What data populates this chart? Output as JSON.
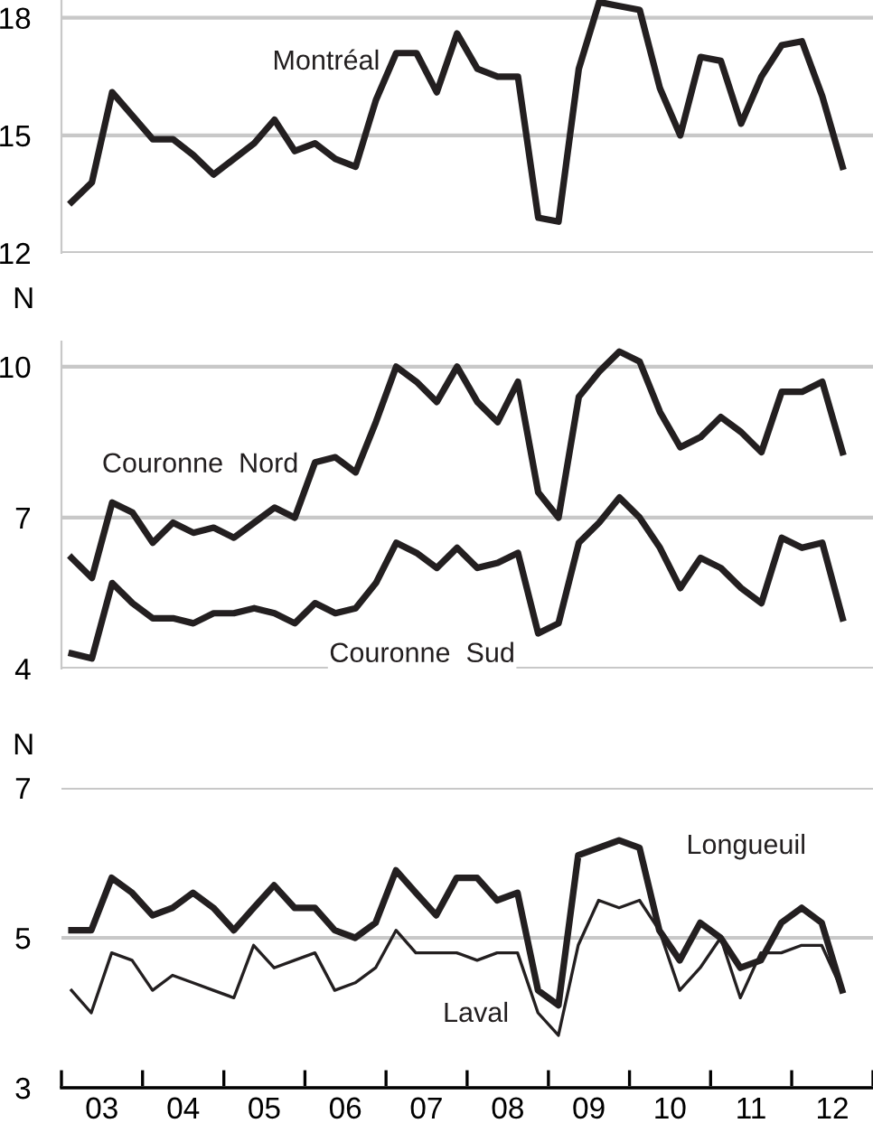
{
  "chart_data": [
    {
      "type": "line",
      "categories": [
        null,
        null,
        null,
        null,
        null,
        null,
        null,
        null,
        null,
        null,
        null,
        null,
        null,
        null,
        null,
        null,
        null,
        null,
        null,
        null,
        null,
        null,
        null,
        null,
        null,
        null,
        null,
        null,
        null,
        null,
        null,
        null,
        null,
        null,
        null,
        null,
        null,
        null,
        null
      ],
      "series": [
        {
          "name": "Montréal",
          "color": "#231f20",
          "values": [
            13.3,
            13.8,
            16.1,
            15.5,
            14.9,
            14.9,
            14.5,
            14.0,
            14.4,
            14.8,
            15.4,
            14.6,
            14.8,
            14.4,
            14.2,
            15.9,
            17.1,
            17.1,
            16.1,
            17.6,
            16.7,
            16.5,
            16.5,
            12.9,
            12.8,
            16.7,
            18.4,
            18.3,
            18.2,
            16.2,
            15.0,
            17.0,
            16.9,
            15.3,
            16.5,
            17.3,
            17.4,
            16.0,
            14.2
          ]
        }
      ],
      "ylim": [
        12,
        18.5
      ],
      "yticks": [
        12,
        15,
        18
      ],
      "grid": "y",
      "tick_labels": "y"
    },
    {
      "type": "line",
      "ylabel": "N",
      "categories": [
        null,
        null,
        null,
        null,
        null,
        null,
        null,
        null,
        null,
        null,
        null,
        null,
        null,
        null,
        null,
        null,
        null,
        null,
        null,
        null,
        null,
        null,
        null,
        null,
        null,
        null,
        null,
        null,
        null,
        null,
        null,
        null,
        null,
        null,
        null,
        null,
        null,
        null,
        null
      ],
      "series": [
        {
          "name": "Couronne  Nord",
          "color": "#231f20",
          "values": [
            6.2,
            5.8,
            7.3,
            7.1,
            6.5,
            6.9,
            6.7,
            6.8,
            6.6,
            6.9,
            7.2,
            7.0,
            8.1,
            8.2,
            7.9,
            8.9,
            10.0,
            9.7,
            9.3,
            10.0,
            9.3,
            8.9,
            9.7,
            7.5,
            7.0,
            9.4,
            9.9,
            10.3,
            10.1,
            9.1,
            8.4,
            8.6,
            9.0,
            8.7,
            8.3,
            9.5,
            9.5,
            9.7,
            8.3
          ]
        },
        {
          "name": "Couronne  Sud",
          "color": "#231f20",
          "values": [
            4.3,
            4.2,
            5.7,
            5.3,
            5.0,
            5.0,
            4.9,
            5.1,
            5.1,
            5.2,
            5.1,
            4.9,
            5.3,
            5.1,
            5.2,
            5.7,
            6.5,
            6.3,
            6.0,
            6.4,
            6.0,
            6.1,
            6.3,
            4.7,
            4.9,
            6.5,
            6.9,
            7.4,
            7.0,
            6.4,
            5.6,
            6.2,
            6.0,
            5.6,
            5.3,
            6.6,
            6.4,
            6.5,
            5.0
          ]
        }
      ],
      "ylim": [
        4,
        10.5
      ],
      "yticks": [
        4,
        7,
        10
      ],
      "grid": "y",
      "tick_labels": "y"
    },
    {
      "type": "line",
      "ylabel": "N",
      "x": [
        "2003-02-15",
        "2003-05-15",
        "2003-08-15",
        "2003-11-15",
        "2004-02-15",
        "2004-05-15",
        "2004-08-15",
        "2004-11-15",
        "2005-02-15",
        "2005-05-15",
        "2005-08-15",
        "2005-11-15",
        "2006-02-15",
        "2006-05-15",
        "2006-08-15",
        "2006-11-15",
        "2007-02-15",
        "2007-05-15",
        "2007-08-15",
        "2007-11-15",
        "2008-02-15",
        "2008-05-15",
        "2008-08-15",
        "2008-11-15",
        "2009-02-15",
        "2009-05-15",
        "2009-08-15",
        "2009-11-15",
        "2010-02-15",
        "2010-05-15",
        "2010-08-15",
        "2010-11-15",
        "2011-02-15",
        "2011-05-15",
        "2011-08-15",
        "2011-11-15",
        "2012-02-15",
        "2012-05-15",
        "2012-08-15"
      ],
      "series": [
        {
          "name": "Longueuil",
          "color": "#231f20",
          "values": [
            5.1,
            5.1,
            5.8,
            5.6,
            5.3,
            5.4,
            5.6,
            5.4,
            5.1,
            5.4,
            5.7,
            5.4,
            5.4,
            5.1,
            5.0,
            5.2,
            5.9,
            5.6,
            5.3,
            5.8,
            5.8,
            5.5,
            5.6,
            4.3,
            4.1,
            6.1,
            6.2,
            6.3,
            6.2,
            5.1,
            4.7,
            5.2,
            5.0,
            4.6,
            4.7,
            5.2,
            5.4,
            5.2,
            4.3
          ]
        },
        {
          "name": "Laval",
          "color": "#231f20",
          "values": [
            4.3,
            4.0,
            4.8,
            4.7,
            4.3,
            4.5,
            4.4,
            4.3,
            4.2,
            4.9,
            4.6,
            4.7,
            4.8,
            4.3,
            4.4,
            4.6,
            5.1,
            4.8,
            4.8,
            4.8,
            4.7,
            4.8,
            4.8,
            4.0,
            3.7,
            4.9,
            5.5,
            5.4,
            5.5,
            5.1,
            4.3,
            4.6,
            5.0,
            4.2,
            4.8,
            4.8,
            4.9,
            4.9,
            4.3
          ]
        }
      ],
      "xlim": [
        "2003-01-01",
        "2013-01-01"
      ],
      "xticks": [
        {
          "value": "2003-01-01",
          "label": null
        },
        {
          "value": "2003-07-02",
          "label": "03"
        },
        {
          "value": "2004-01-01",
          "label": null
        },
        {
          "value": "2004-07-02",
          "label": "04"
        },
        {
          "value": "2005-01-01",
          "label": null
        },
        {
          "value": "2005-07-02",
          "label": "05"
        },
        {
          "value": "2006-01-01",
          "label": null
        },
        {
          "value": "2006-07-02",
          "label": "06"
        },
        {
          "value": "2007-01-01",
          "label": null
        },
        {
          "value": "2007-07-02",
          "label": "07"
        },
        {
          "value": "2008-01-01",
          "label": null
        },
        {
          "value": "2008-07-02",
          "label": "08"
        },
        {
          "value": "2009-01-01",
          "label": null
        },
        {
          "value": "2009-07-02",
          "label": "09"
        },
        {
          "value": "2010-01-01",
          "label": null
        },
        {
          "value": "2010-07-02",
          "label": "10"
        },
        {
          "value": "2011-01-01",
          "label": null
        },
        {
          "value": "2011-07-02",
          "label": "11"
        },
        {
          "value": "2012-01-01",
          "label": null
        },
        {
          "value": "2012-07-02",
          "label": "12"
        },
        {
          "value": "2013-01-01",
          "label": null
        }
      ],
      "ylim": [
        3,
        7
      ],
      "yticks": [
        3,
        5,
        7
      ],
      "grid": "y"
    }
  ]
}
